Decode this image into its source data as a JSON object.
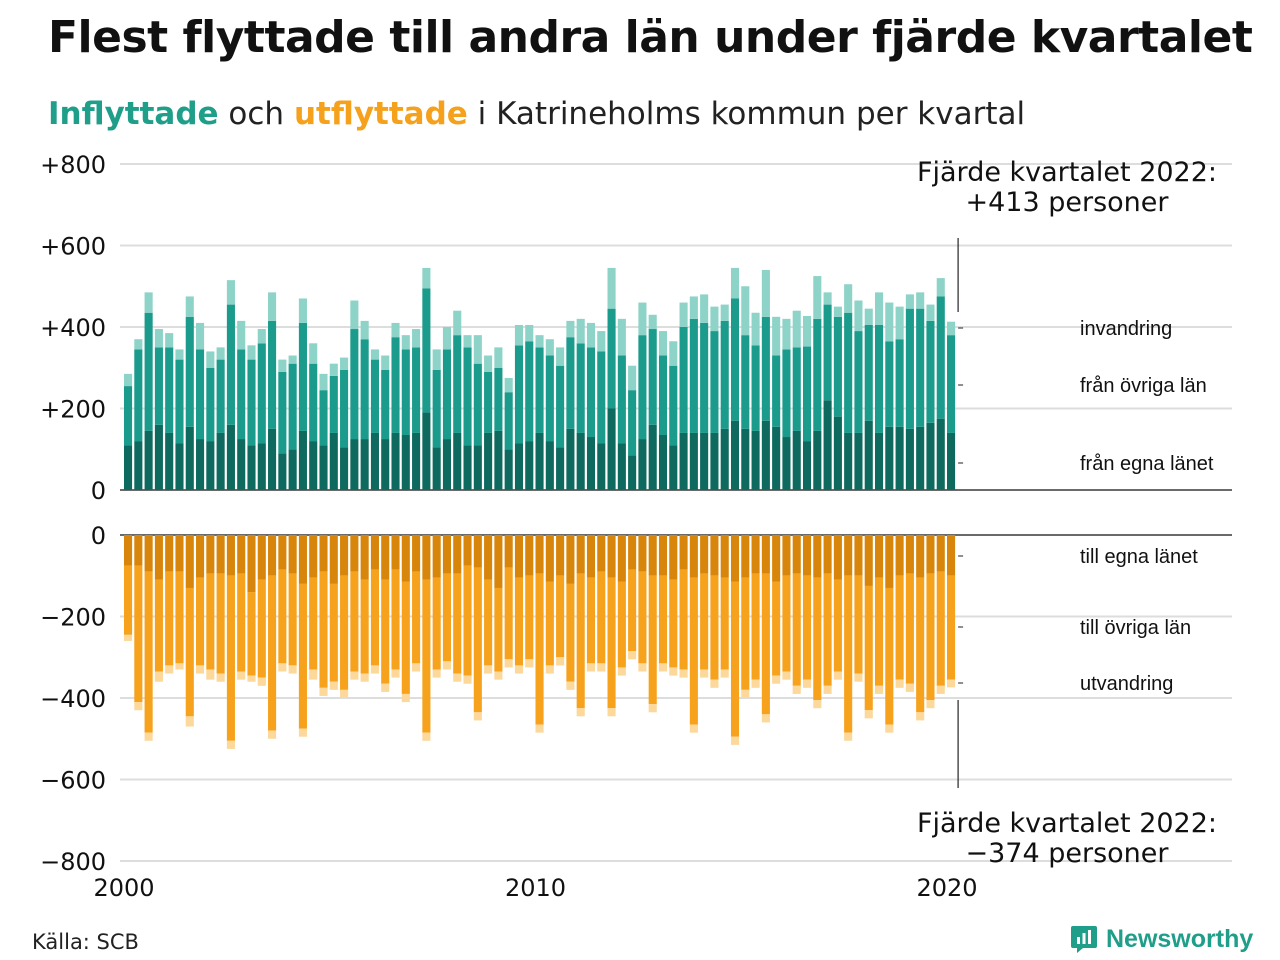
{
  "title": "Flest flyttade till andra län under fjärde kvartalet",
  "subtitle": {
    "in_word": "Inflyttade",
    "and_word": "och",
    "out_word": "utflyttade",
    "rest": "i Katrineholms kommun per kvartal"
  },
  "source": "Källa: SCB",
  "brand": "Newsworthy",
  "colors": {
    "in_own": "#0e6a5e",
    "in_other": "#1a9b8b",
    "in_immig": "#8dd3c7",
    "out_own": "#d8860b",
    "out_other": "#f6a21d",
    "out_emig": "#fcd89a",
    "grid": "#dddddd",
    "axis": "#111111"
  },
  "annotations": {
    "top": [
      "Fjärde kvartalet 2022:",
      "+413 personer"
    ],
    "bottom": [
      "Fjärde kvartalet 2022:",
      "−374 personer"
    ]
  },
  "chart_data": {
    "type": "bar",
    "stacked": true,
    "x_start": 2000,
    "x_ticks": [
      "2000",
      "2010",
      "2020"
    ],
    "x_tick_values": [
      2000,
      2010,
      2020
    ],
    "upper_panel": {
      "ylim": [
        0,
        800
      ],
      "y_ticks": [
        0,
        200,
        400,
        600,
        800
      ],
      "y_tick_labels": [
        "0",
        "+200",
        "+400",
        "+600",
        "+800"
      ]
    },
    "lower_panel": {
      "ylim": [
        -800,
        0
      ],
      "y_ticks": [
        0,
        -200,
        -400,
        -600,
        -800
      ],
      "y_tick_labels": [
        "0",
        "−200",
        "−400",
        "−600",
        "−800"
      ]
    },
    "in_series": [
      {
        "name": "från egna länet",
        "values": [
          110,
          120,
          145,
          160,
          140,
          115,
          155,
          125,
          120,
          140,
          160,
          125,
          110,
          115,
          150,
          90,
          100,
          145,
          120,
          110,
          140,
          105,
          125,
          125,
          140,
          125,
          140,
          135,
          140,
          190,
          105,
          125,
          140,
          110,
          110,
          140,
          145,
          100,
          115,
          120,
          140,
          120,
          105,
          150,
          140,
          130,
          115,
          200,
          115,
          85,
          125,
          160,
          135,
          110,
          140,
          140,
          140,
          140,
          150,
          170,
          150,
          145,
          170,
          155,
          130,
          145,
          120,
          145,
          220,
          180,
          140,
          140,
          170,
          140,
          155,
          155,
          150,
          155,
          165,
          175,
          140
        ]
      },
      {
        "name": "från övriga län",
        "values": [
          145,
          225,
          290,
          190,
          210,
          205,
          270,
          220,
          180,
          180,
          295,
          220,
          210,
          245,
          265,
          200,
          210,
          265,
          190,
          135,
          140,
          190,
          270,
          245,
          180,
          170,
          235,
          210,
          210,
          305,
          190,
          220,
          240,
          240,
          200,
          150,
          155,
          140,
          240,
          245,
          210,
          210,
          200,
          225,
          220,
          220,
          225,
          245,
          215,
          160,
          255,
          235,
          195,
          195,
          260,
          280,
          270,
          250,
          265,
          300,
          230,
          210,
          255,
          175,
          215,
          205,
          232,
          275,
          235,
          245,
          295,
          250,
          235,
          265,
          210,
          215,
          295,
          290,
          250,
          300,
          240
        ]
      },
      {
        "name": "invandring",
        "values": [
          30,
          25,
          50,
          45,
          35,
          25,
          50,
          65,
          40,
          30,
          60,
          70,
          35,
          35,
          70,
          30,
          20,
          60,
          50,
          40,
          30,
          30,
          70,
          45,
          25,
          35,
          35,
          35,
          45,
          50,
          50,
          55,
          60,
          30,
          70,
          40,
          50,
          35,
          50,
          40,
          30,
          40,
          45,
          40,
          60,
          60,
          50,
          100,
          90,
          60,
          80,
          35,
          60,
          60,
          60,
          55,
          70,
          60,
          40,
          75,
          120,
          80,
          115,
          95,
          75,
          90,
          75,
          105,
          30,
          25,
          70,
          75,
          40,
          80,
          95,
          80,
          35,
          40,
          40,
          45,
          33
        ]
      },
      {
        "name": "invandring_extra",
        "values": [
          0,
          0,
          0,
          0,
          0,
          0,
          0,
          0,
          0,
          0,
          0,
          0,
          0,
          0,
          0,
          0,
          0,
          0,
          0,
          0,
          0,
          0,
          0,
          0,
          0,
          0,
          0,
          0,
          0,
          0,
          0,
          0,
          0,
          0,
          0,
          0,
          0,
          0,
          0,
          0,
          0,
          0,
          0,
          0,
          0,
          0,
          0,
          0,
          0,
          0,
          0,
          0,
          0,
          0,
          0,
          0,
          0,
          0,
          0,
          0,
          0,
          0,
          0,
          0,
          0,
          0,
          0,
          0,
          0,
          0,
          0,
          0,
          0,
          0,
          0,
          0,
          0,
          0,
          0,
          0,
          0
        ]
      }
    ],
    "out_series": [
      {
        "name": "till egna länet",
        "values": [
          75,
          75,
          90,
          110,
          90,
          90,
          130,
          105,
          95,
          95,
          100,
          95,
          140,
          110,
          100,
          85,
          95,
          120,
          105,
          90,
          120,
          100,
          90,
          110,
          85,
          110,
          85,
          115,
          90,
          110,
          105,
          95,
          95,
          75,
          80,
          110,
          130,
          80,
          105,
          100,
          95,
          115,
          100,
          120,
          95,
          105,
          90,
          105,
          115,
          85,
          90,
          100,
          100,
          110,
          85,
          105,
          95,
          100,
          105,
          115,
          105,
          95,
          95,
          115,
          100,
          95,
          100,
          105,
          95,
          110,
          100,
          100,
          125,
          105,
          130,
          100,
          95,
          105,
          95,
          90,
          100
        ]
      },
      {
        "name": "till övriga län",
        "values": [
          170,
          335,
          395,
          225,
          230,
          225,
          315,
          215,
          235,
          245,
          405,
          240,
          205,
          240,
          380,
          230,
          225,
          355,
          225,
          285,
          240,
          280,
          245,
          230,
          235,
          255,
          245,
          275,
          225,
          375,
          225,
          215,
          245,
          270,
          355,
          210,
          205,
          225,
          215,
          205,
          370,
          205,
          200,
          240,
          330,
          210,
          225,
          320,
          210,
          200,
          225,
          315,
          215,
          215,
          245,
          360,
          235,
          255,
          225,
          380,
          275,
          260,
          345,
          230,
          235,
          275,
          255,
          300,
          275,
          225,
          385,
          240,
          305,
          265,
          335,
          255,
          270,
          330,
          310,
          280,
          255
        ]
      },
      {
        "name": "utvandring",
        "values": [
          15,
          20,
          20,
          25,
          20,
          15,
          25,
          20,
          25,
          20,
          20,
          20,
          15,
          20,
          20,
          20,
          20,
          20,
          25,
          20,
          20,
          20,
          20,
          20,
          20,
          20,
          20,
          20,
          20,
          20,
          20,
          20,
          20,
          20,
          20,
          20,
          20,
          20,
          20,
          20,
          20,
          20,
          20,
          20,
          20,
          20,
          20,
          20,
          20,
          20,
          20,
          20,
          20,
          20,
          20,
          20,
          20,
          20,
          20,
          20,
          20,
          20,
          20,
          20,
          20,
          20,
          20,
          20,
          20,
          20,
          20,
          20,
          20,
          20,
          20,
          20,
          20,
          20,
          20,
          20,
          19
        ]
      }
    ],
    "series_labels_in": [
      "invandring",
      "från övriga län",
      "från egna länet"
    ],
    "series_labels_out": [
      "till egna länet",
      "till övriga län",
      "utvandring"
    ]
  }
}
